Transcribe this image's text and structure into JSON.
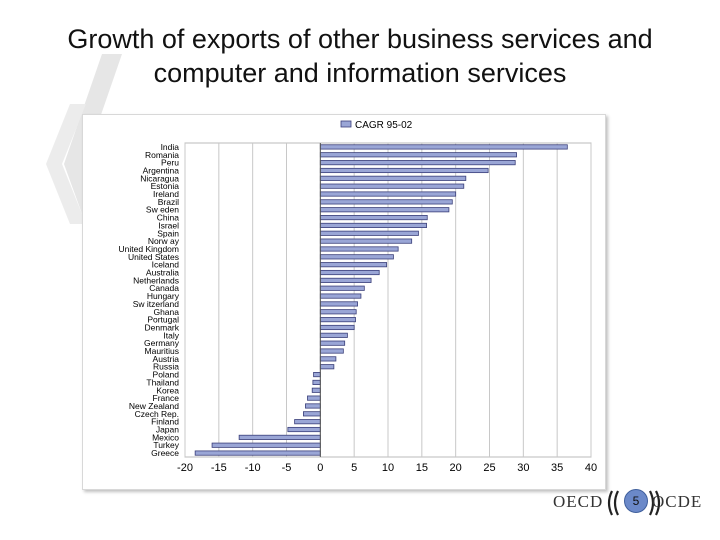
{
  "slide": {
    "title_line1": "Growth of exports of other business services and",
    "title_line2": "computer and information services",
    "page_number": "5",
    "logo_left": "OECD",
    "logo_right": "OCDE"
  },
  "chart_data": {
    "type": "bar",
    "orientation": "horizontal",
    "categories": [
      "India",
      "Romania",
      "Peru",
      "Argentina",
      "Nicaragua",
      "Estonia",
      "Ireland",
      "Brazil",
      "Sw eden",
      "China",
      "Israel",
      "Spain",
      "Norw ay",
      "United Kingdom",
      "United States",
      "Iceland",
      "Australia",
      "Netherlands",
      "Canada",
      "Hungary",
      "Sw itzerland",
      "Ghana",
      "Portugal",
      "Denmark",
      "Italy",
      "Germany",
      "Mauritius",
      "Austria",
      "Russia",
      "Poland",
      "Thailand",
      "Korea",
      "France",
      "New Zealand",
      "Czech Rep.",
      "Finland",
      "Japan",
      "Mexico",
      "Turkey",
      "Greece"
    ],
    "series": [
      {
        "name": "CAGR 95-02",
        "values": [
          36.5,
          29,
          28.8,
          24.8,
          21.5,
          21.2,
          20,
          19.5,
          19,
          15.8,
          15.7,
          14.5,
          13.5,
          11.5,
          10.8,
          9.8,
          8.7,
          7.5,
          6.5,
          6,
          5.5,
          5.3,
          5.2,
          5,
          4,
          3.6,
          3.4,
          2.3,
          2,
          -1,
          -1.1,
          -1.2,
          -1.9,
          -2.2,
          -2.5,
          -3.8,
          -4.8,
          -12,
          -16,
          -18.5
        ]
      }
    ],
    "xlim": [
      -20,
      40
    ],
    "xticks": [
      -20,
      -15,
      -10,
      -5,
      0,
      5,
      10,
      15,
      20,
      25,
      30,
      35,
      40
    ],
    "legend_position": "top",
    "grid": true,
    "colors": {
      "bar_fill": "#9aa6d6",
      "bar_stroke": "#3a3f7a",
      "grid": "#c8c8c8"
    }
  }
}
